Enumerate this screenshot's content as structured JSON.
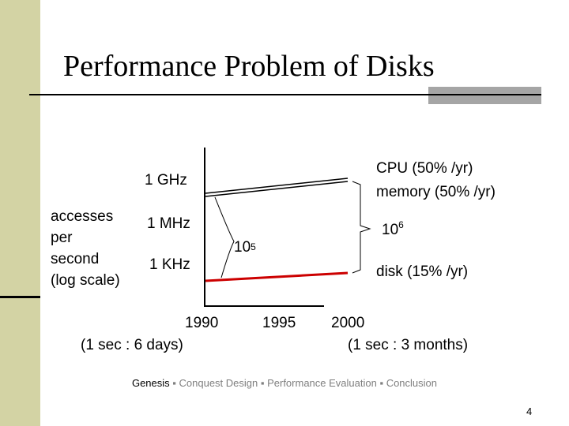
{
  "slide": {
    "title": "Performance Problem of Disks",
    "page_number": "4"
  },
  "colors": {
    "stripe": "#d3d3a4",
    "accent_bar": "#a5a5a5",
    "disk_line": "#cc0000",
    "cpu_line": "#000000"
  },
  "chart_data": {
    "type": "line",
    "ylabel": [
      "accesses",
      "per",
      "second",
      "(log scale)"
    ],
    "y_scale": "log",
    "y_ticks": [
      "1 GHz",
      "1 MHz",
      "1 KHz"
    ],
    "x_ticks": [
      {
        "year": "1990",
        "note": "(1 sec : 6 days)"
      },
      {
        "year": "1995",
        "note": ""
      },
      {
        "year": "2000",
        "note": "(1 sec : 3 months)"
      }
    ],
    "series": [
      {
        "name": "CPU (50% /yr)",
        "x": [
          1990,
          2000
        ],
        "values_label": [
          "1 GHz level",
          "above 1 GHz"
        ]
      },
      {
        "name": "memory (50% /yr)",
        "x": [
          1990,
          2000
        ]
      },
      {
        "name": "disk (15% /yr)",
        "x": [
          1990,
          2000
        ]
      }
    ],
    "annotations": {
      "gap_1990_base": "10",
      "gap_1990_exp": "5",
      "gap_2000_base": "10",
      "gap_2000_exp": "6"
    }
  },
  "footer": {
    "current": "Genesis",
    "sep": " ▪ ",
    "items": [
      "Conquest Design",
      "Performance Evaluation",
      "Conclusion"
    ]
  }
}
